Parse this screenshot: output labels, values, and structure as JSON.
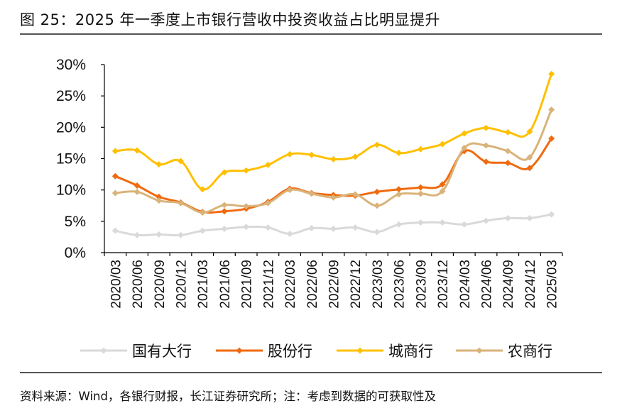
{
  "title": "图 25：2025 年一季度上市银行营收中投资收益占比明显提升",
  "source": "资料来源：Wind，各银行财报，长江证券研究所；注：考虑到数据的可获取性及",
  "chart_data": {
    "type": "line",
    "categories": [
      "2020/03",
      "2020/06",
      "2020/09",
      "2020/12",
      "2021/03",
      "2021/06",
      "2021/09",
      "2021/12",
      "2022/03",
      "2022/06",
      "2022/09",
      "2022/12",
      "2023/03",
      "2023/06",
      "2023/09",
      "2023/12",
      "2024/03",
      "2024/06",
      "2024/09",
      "2024/12",
      "2025/03"
    ],
    "y_ticks": [
      "0%",
      "5%",
      "10%",
      "15%",
      "20%",
      "25%",
      "30%"
    ],
    "ylim": [
      0,
      30
    ],
    "y_unit": "%",
    "legend_position": "bottom",
    "grid": false,
    "series": [
      {
        "name": "国有大行",
        "color": "#d9d9d9",
        "values": [
          3.5,
          2.8,
          2.9,
          2.8,
          3.5,
          3.8,
          4.1,
          4.0,
          3.0,
          3.9,
          3.8,
          4.0,
          3.3,
          4.5,
          4.8,
          4.8,
          4.5,
          5.1,
          5.5,
          5.5,
          6.1
        ]
      },
      {
        "name": "股份行",
        "color": "#f06a0f",
        "values": [
          12.2,
          10.7,
          8.9,
          8.0,
          6.5,
          6.6,
          7.0,
          8.1,
          10.2,
          9.5,
          9.2,
          9.1,
          9.7,
          10.1,
          10.4,
          10.9,
          16.2,
          14.5,
          14.3,
          13.5,
          18.2
        ]
      },
      {
        "name": "城商行",
        "color": "#ffc000",
        "values": [
          16.2,
          16.3,
          14.1,
          14.6,
          10.1,
          12.8,
          13.1,
          14.0,
          15.7,
          15.6,
          14.9,
          15.3,
          17.2,
          15.9,
          16.5,
          17.3,
          19.0,
          19.9,
          19.2,
          19.3,
          28.5
        ]
      },
      {
        "name": "农商行",
        "color": "#d9b37a",
        "values": [
          9.5,
          9.7,
          8.3,
          7.9,
          6.4,
          7.6,
          7.4,
          7.9,
          10.0,
          9.4,
          8.8,
          9.3,
          7.5,
          9.3,
          9.4,
          9.8,
          16.7,
          17.1,
          16.2,
          15.2,
          22.8
        ]
      }
    ]
  }
}
